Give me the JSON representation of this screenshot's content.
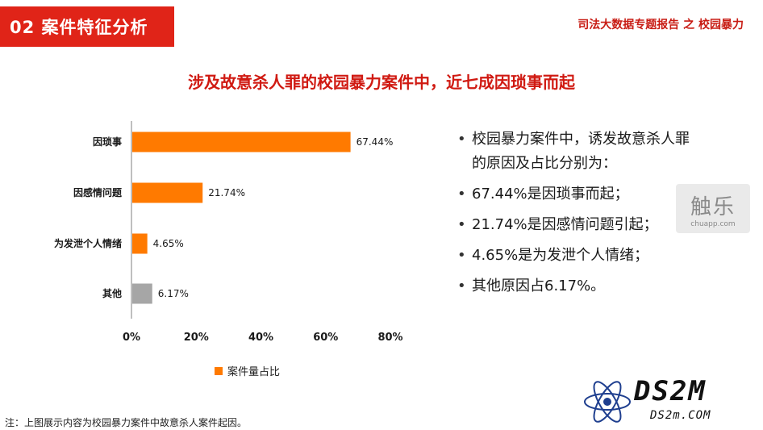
{
  "header": {
    "section_title": "02 案件特征分析",
    "report_title": "司法大数据专题报告 之 校园暴力"
  },
  "headline": "涉及故意杀人罪的校园暴力案件中，近七成因琐事而起",
  "chart_data": {
    "type": "bar",
    "orientation": "horizontal",
    "categories": [
      "因琐事",
      "因感情问题",
      "为发泄个人情绪",
      "其他"
    ],
    "series": [
      {
        "name": "案件量占比",
        "values": [
          67.44,
          21.74,
          4.65,
          6.17
        ],
        "labels": [
          "67.44%",
          "21.74%",
          "4.65%",
          "6.17%"
        ],
        "colors": [
          "#ff7a00",
          "#ff7a00",
          "#ff7a00",
          "#a6a6a6"
        ]
      }
    ],
    "xlim": [
      0,
      80
    ],
    "xticks": [
      0,
      20,
      40,
      60,
      80
    ],
    "xtick_labels": [
      "0%",
      "20%",
      "40%",
      "60%",
      "80%"
    ],
    "legend_position": "bottom",
    "grid": false
  },
  "bullets": [
    "校园暴力案件中，诱发故意杀人罪的原因及占比分别为：",
    "67.44%是因琐事而起；",
    "21.74%是因感情问题引起；",
    "4.65%是为发泄个人情绪；",
    "其他原因占6.17%。"
  ],
  "footnote": "注：上图展示内容为校园暴力案件中故意杀人案件起因。",
  "watermark": {
    "big": "触乐",
    "small": "chuapp.com"
  },
  "ds2m": {
    "big": "DS2M",
    "small": "DS2m.COM"
  }
}
